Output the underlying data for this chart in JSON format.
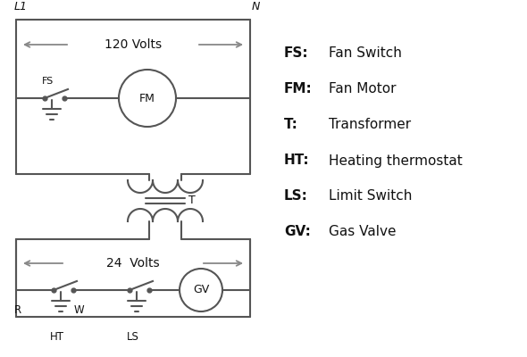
{
  "bg_color": "#ffffff",
  "line_color": "#555555",
  "text_color": "#111111",
  "arrow_color": "#888888",
  "legend": [
    [
      "FS:",
      "Fan Switch"
    ],
    [
      "FM:",
      "Fan Motor"
    ],
    [
      "T:",
      "Transformer"
    ],
    [
      "HT:",
      "Heating thermostat"
    ],
    [
      "LS:",
      "Limit Switch"
    ],
    [
      "GV:",
      "Gas Valve"
    ]
  ],
  "fig_width": 5.9,
  "fig_height": 4.0,
  "dpi": 100
}
